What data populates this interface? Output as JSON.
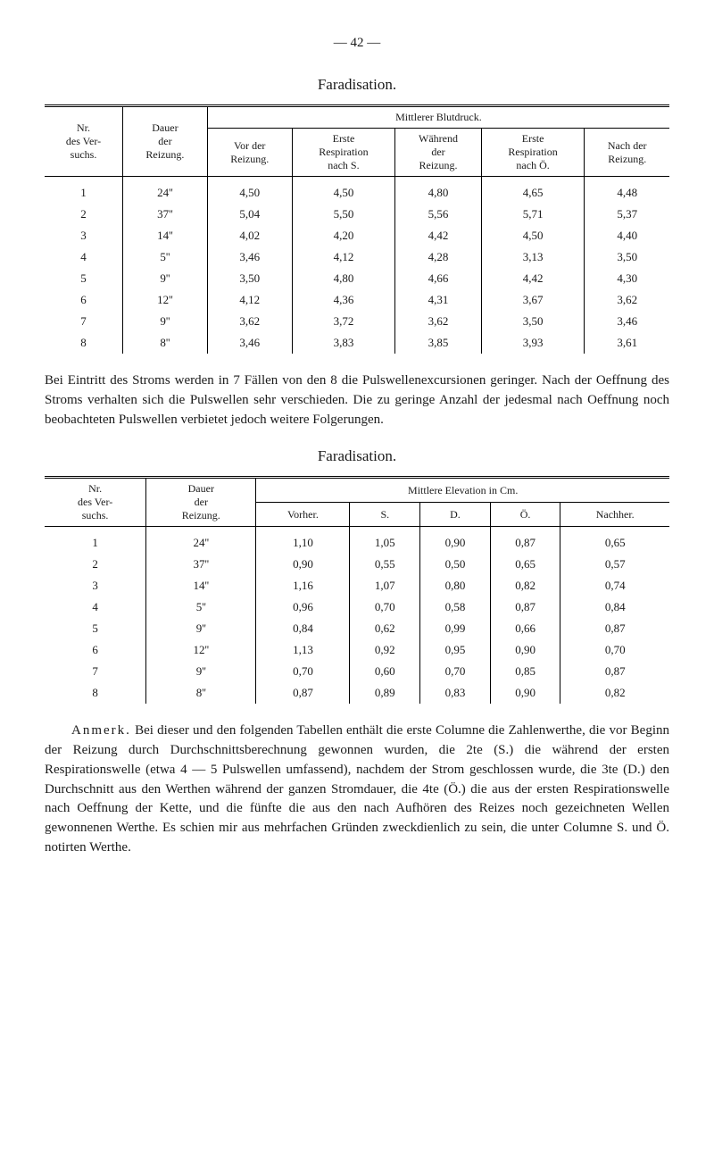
{
  "page_number": "— 42 —",
  "title1": "Faradisation.",
  "table1": {
    "header_group": "Mittlerer Blutdruck.",
    "h_nr": "Nr.\ndes Ver-\nsuchs.",
    "h_dauer": "Dauer\nder\nReizung.",
    "h_vor": "Vor der\nReizung.",
    "h_erste_resp": "Erste\nRespiration\nnach S.",
    "h_waehrend": "Während\nder\nReizung.",
    "h_erste_resp2": "Erste\nRespiration\nnach Ö.",
    "h_nach": "Nach der\nReizung.",
    "rows": [
      [
        "1",
        "24''",
        "4,50",
        "4,50",
        "4,80",
        "4,65",
        "4,48"
      ],
      [
        "2",
        "37''",
        "5,04",
        "5,50",
        "5,56",
        "5,71",
        "5,37"
      ],
      [
        "3",
        "14''",
        "4,02",
        "4,20",
        "4,42",
        "4,50",
        "4,40"
      ],
      [
        "4",
        "5''",
        "3,46",
        "4,12",
        "4,28",
        "3,13",
        "3,50"
      ],
      [
        "5",
        "9''",
        "3,50",
        "4,80",
        "4,66",
        "4,42",
        "4,30"
      ],
      [
        "6",
        "12''",
        "4,12",
        "4,36",
        "4,31",
        "3,67",
        "3,62"
      ],
      [
        "7",
        "9''",
        "3,62",
        "3,72",
        "3,62",
        "3,50",
        "3,46"
      ],
      [
        "8",
        "8''",
        "3,46",
        "3,83",
        "3,85",
        "3,93",
        "3,61"
      ]
    ]
  },
  "para1": "Bei Eintritt des Stroms werden in 7 Fällen von den 8 die Puls­wellenexcursionen geringer. Nach der Oeffnung des Stroms verhalten sich die Pulswellen sehr verschieden. Die zu geringe Anzahl der jedesmal nach Oeffnung noch beobachteten Pulswellen verbietet je­doch weitere Folgerungen.",
  "title2": "Faradisation.",
  "table2": {
    "header_group": "Mittlere Elevation in Cm.",
    "h_nr": "Nr.\ndes Ver-\nsuchs.",
    "h_dauer": "Dauer\nder\nReizung.",
    "h_vorher": "Vorher.",
    "h_s": "S.",
    "h_d": "D.",
    "h_o": "Ö.",
    "h_nachher": "Nachher.",
    "rows": [
      [
        "1",
        "24''",
        "1,10",
        "1,05",
        "0,90",
        "0,87",
        "0,65"
      ],
      [
        "2",
        "37''",
        "0,90",
        "0,55",
        "0,50",
        "0,65",
        "0,57"
      ],
      [
        "3",
        "14''",
        "1,16",
        "1,07",
        "0,80",
        "0,82",
        "0,74"
      ],
      [
        "4",
        "5''",
        "0,96",
        "0,70",
        "0,58",
        "0,87",
        "0,84"
      ],
      [
        "5",
        "9''",
        "0,84",
        "0,62",
        "0,99",
        "0,66",
        "0,87"
      ],
      [
        "6",
        "12''",
        "1,13",
        "0,92",
        "0,95",
        "0,90",
        "0,70"
      ],
      [
        "7",
        "9''",
        "0,70",
        "0,60",
        "0,70",
        "0,85",
        "0,87"
      ],
      [
        "8",
        "8''",
        "0,87",
        "0,89",
        "0,83",
        "0,90",
        "0,82"
      ]
    ]
  },
  "anmerk_label": "Anmerk.",
  "para2": " Bei dieser und den folgenden Tabellen enthält die erste Columne die Zahlenwerthe, die vor Beginn der Reizung durch Durchschnittsberechnung gewonnen wurden, die 2te (S.) die während der ersten Respirationswelle (etwa 4 — 5 Pulswellen umfassend), nachdem der Strom geschlossen wurde, die 3te (D.) den Durchschnitt aus den Werthen während der ganzen Stromdauer, die 4te (Ö.) die aus der ersten Respirationswelle nach Oeffnung der Kette, und die fünfte die aus den nach Aufhören des Reizes noch gezeichneten Wellen gewonnenen Werthe. Es schien mir aus mehrfachen Gründen zweckdienlich zu sein, die unter Columne S. und Ö. notirten Werthe."
}
